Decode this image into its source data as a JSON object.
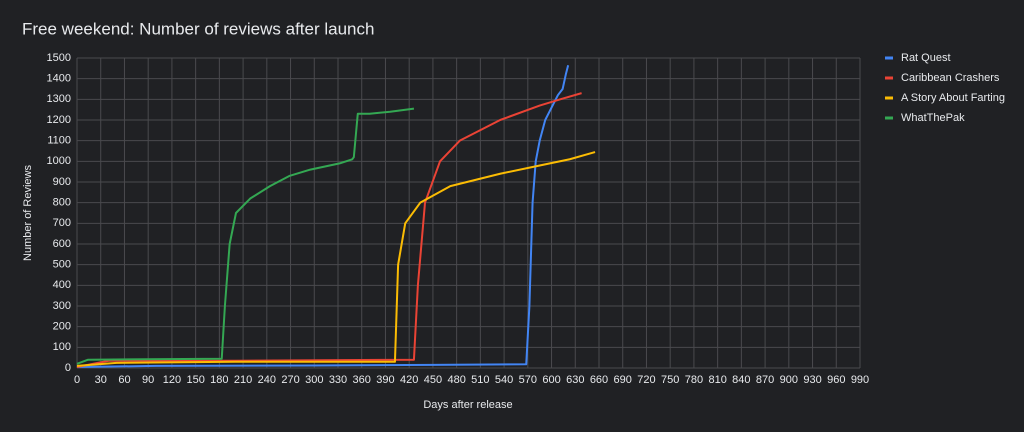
{
  "chart_data": {
    "type": "line",
    "title": "Free weekend: Number of reviews after launch",
    "x_label": "Days after release",
    "y_label": "Number of Reviews",
    "xlim": [
      0,
      990
    ],
    "ylim": [
      0,
      1500
    ],
    "xticks": [
      0,
      30,
      60,
      90,
      120,
      150,
      180,
      210,
      240,
      270,
      300,
      330,
      360,
      390,
      420,
      450,
      480,
      510,
      540,
      570,
      600,
      630,
      660,
      690,
      720,
      750,
      780,
      810,
      840,
      870,
      900,
      930,
      960,
      990
    ],
    "yticks": [
      0,
      100,
      200,
      300,
      400,
      500,
      600,
      700,
      800,
      900,
      1000,
      1100,
      1200,
      1300,
      1400,
      1500
    ],
    "grid": true,
    "legend": "right",
    "series": [
      {
        "name": "Rat Quest",
        "color": "#4285f4",
        "x": [
          0,
          100,
          300,
          450,
          568,
          572,
          576,
          580,
          585,
          592,
          600,
          608,
          614,
          618,
          621
        ],
        "values": [
          5,
          10,
          12,
          15,
          18,
          300,
          800,
          1000,
          1100,
          1200,
          1260,
          1320,
          1350,
          1420,
          1465
        ]
      },
      {
        "name": "Caribbean Crashers",
        "color": "#ea4335",
        "x": [
          0,
          40,
          200,
          426,
          431,
          440,
          459,
          484,
          535,
          585,
          611,
          638
        ],
        "values": [
          5,
          35,
          35,
          40,
          400,
          800,
          1000,
          1100,
          1200,
          1270,
          1300,
          1330
        ]
      },
      {
        "name": "A Story About Farting",
        "color": "#fbbc04",
        "x": [
          0,
          50,
          200,
          402,
          406,
          415,
          434,
          472,
          535,
          585,
          623,
          655
        ],
        "values": [
          10,
          25,
          30,
          30,
          500,
          700,
          800,
          880,
          940,
          980,
          1010,
          1045
        ]
      },
      {
        "name": "WhatThePak",
        "color": "#34a853",
        "x": [
          0,
          14,
          183,
          187,
          193,
          201,
          219,
          244,
          269,
          295,
          332,
          348,
          350,
          355,
          370,
          396,
          426
        ],
        "values": [
          20,
          40,
          45,
          300,
          600,
          750,
          820,
          880,
          930,
          960,
          990,
          1010,
          1020,
          1230,
          1230,
          1240,
          1255
        ]
      }
    ]
  }
}
